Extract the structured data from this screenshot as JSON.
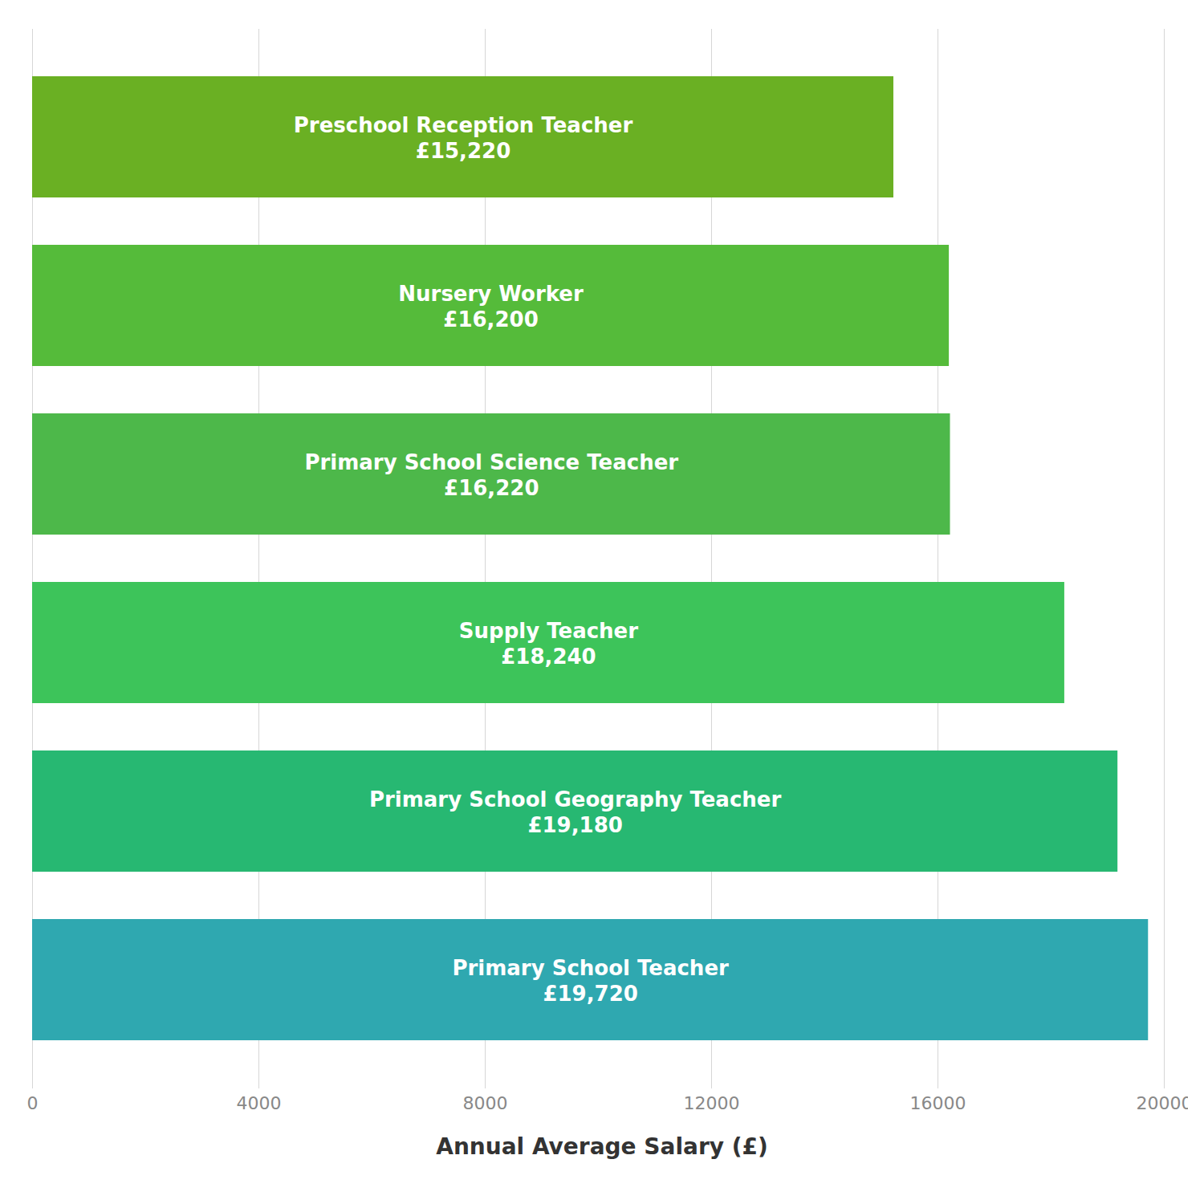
{
  "chart_data": {
    "type": "bar",
    "orientation": "horizontal",
    "categories": [
      "Primary School Teacher",
      "Primary School Geography Teacher",
      "Supply Teacher",
      "Primary School Science Teacher",
      "Nursery Worker",
      "Preschool Reception Teacher"
    ],
    "values": [
      19720,
      19180,
      18240,
      16220,
      16200,
      15220
    ],
    "value_labels": [
      "£19,720",
      "£19,180",
      "£18,240",
      "£16,220",
      "£16,200",
      "£15,220"
    ],
    "colors": [
      "#2fa8b0",
      "#27b872",
      "#3dc45a",
      "#4db84a",
      "#55bb3a",
      "#6ab023"
    ],
    "xlabel": "Annual Average Salary (£)",
    "xlim": [
      0,
      20000
    ],
    "xticks": [
      0,
      4000,
      8000,
      12000,
      16000,
      20000
    ],
    "grid": true,
    "data_labels": true,
    "tick_labels": "x"
  }
}
